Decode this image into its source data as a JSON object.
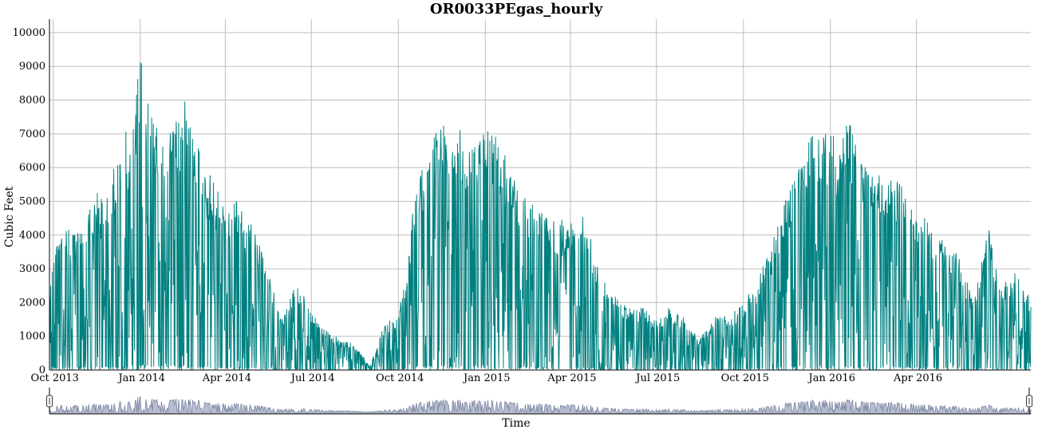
{
  "chart_data": {
    "type": "line",
    "title": "OR0033PEgas_hourly",
    "xlabel": "Time",
    "ylabel": "Cubic Feet",
    "ylim": [
      0,
      10400
    ],
    "y_ticks": [
      0,
      1000,
      2000,
      3000,
      4000,
      5000,
      6000,
      7000,
      8000,
      9000,
      10000
    ],
    "x_range": [
      "2013-09-27",
      "2016-07-31"
    ],
    "x_ticks": [
      {
        "date": "2013-10-01",
        "label": "Oct 2013"
      },
      {
        "date": "2014-01-01",
        "label": "Jan 2014"
      },
      {
        "date": "2014-04-01",
        "label": "Apr 2014"
      },
      {
        "date": "2014-07-01",
        "label": "Jul 2014"
      },
      {
        "date": "2014-10-01",
        "label": "Oct 2014"
      },
      {
        "date": "2015-01-01",
        "label": "Jan 2015"
      },
      {
        "date": "2015-04-01",
        "label": "Apr 2015"
      },
      {
        "date": "2015-07-01",
        "label": "Jul 2015"
      },
      {
        "date": "2015-10-01",
        "label": "Oct 2015"
      },
      {
        "date": "2016-01-01",
        "label": "Jan 2016"
      },
      {
        "date": "2016-04-01",
        "label": "Apr 2016"
      }
    ],
    "grid": true,
    "range_selector": true,
    "colors": {
      "series": "#008080",
      "navigator_fill": "#b6bdd0",
      "navigator_line": "#7c86a2"
    },
    "series": [
      {
        "values_note": "",
        "x": [
          "2013-09-27",
          "2013-10-05",
          "2013-10-15",
          "2013-10-25",
          "2013-11-05",
          "2013-11-15",
          "2013-11-25",
          "2013-12-05",
          "2013-12-15",
          "2013-12-22",
          "2014-01-01",
          "2014-01-10",
          "2014-01-20",
          "2014-02-01",
          "2014-02-10",
          "2014-02-20",
          "2014-03-01",
          "2014-03-10",
          "2014-03-20",
          "2014-04-01",
          "2014-04-10",
          "2014-04-20",
          "2014-05-01",
          "2014-05-15",
          "2014-06-01",
          "2014-06-15",
          "2014-07-01",
          "2014-07-15",
          "2014-08-01",
          "2014-08-15",
          "2014-09-01",
          "2014-09-15",
          "2014-10-01",
          "2014-10-10",
          "2014-10-20",
          "2014-11-01",
          "2014-11-10",
          "2014-11-20",
          "2014-12-01",
          "2014-12-10",
          "2014-12-20",
          "2015-01-01",
          "2015-01-10",
          "2015-01-20",
          "2015-02-01",
          "2015-02-15",
          "2015-03-01",
          "2015-03-15",
          "2015-04-01",
          "2015-04-15",
          "2015-05-01",
          "2015-05-15",
          "2015-06-01",
          "2015-06-15",
          "2015-07-01",
          "2015-07-15",
          "2015-08-01",
          "2015-08-15",
          "2015-09-01",
          "2015-09-15",
          "2015-10-01",
          "2015-10-15",
          "2015-11-01",
          "2015-11-10",
          "2015-11-20",
          "2015-12-01",
          "2015-12-10",
          "2015-12-20",
          "2016-01-01",
          "2016-01-10",
          "2016-01-20",
          "2016-02-01",
          "2016-02-15",
          "2016-03-01",
          "2016-03-15",
          "2016-04-01",
          "2016-04-15",
          "2016-05-01",
          "2016-05-15",
          "2016-06-01",
          "2016-06-15",
          "2016-07-01",
          "2016-07-15",
          "2016-07-31"
        ],
        "y": [
          2300,
          4500,
          4300,
          4000,
          4800,
          5400,
          5000,
          6200,
          7200,
          7000,
          9450,
          8800,
          7200,
          7900,
          7600,
          8400,
          6800,
          6100,
          5600,
          5000,
          5400,
          4600,
          4300,
          3000,
          1500,
          2700,
          1700,
          1200,
          900,
          800,
          100,
          1300,
          1700,
          3000,
          5800,
          6500,
          7200,
          7500,
          7600,
          7000,
          6800,
          7700,
          7300,
          6500,
          5600,
          5000,
          4700,
          4500,
          4400,
          4600,
          3200,
          2300,
          1800,
          1900,
          1500,
          1900,
          1500,
          900,
          1600,
          1600,
          2000,
          2600,
          3800,
          4800,
          5400,
          6200,
          6900,
          7200,
          7000,
          6800,
          7500,
          6200,
          5800,
          5700,
          5600,
          4500,
          4500,
          3800,
          3400,
          2000,
          4400,
          2600,
          2900,
          2200
        ]
      }
    ]
  }
}
